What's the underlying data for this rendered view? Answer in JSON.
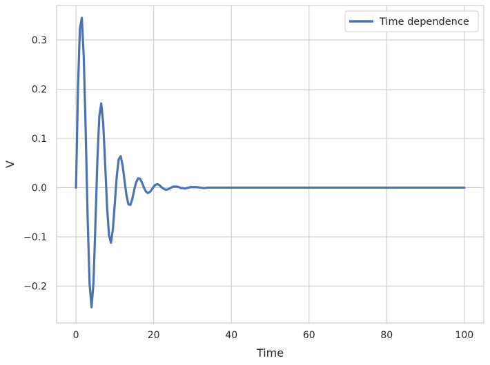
{
  "chart_data": {
    "type": "line",
    "title": "",
    "xlabel": "Time",
    "ylabel": "V",
    "xlim": [
      -5,
      105
    ],
    "ylim": [
      -0.275,
      0.37
    ],
    "xticks": [
      0,
      20,
      40,
      60,
      80,
      100
    ],
    "xtick_labels": [
      "0",
      "20",
      "40",
      "60",
      "80",
      "100"
    ],
    "yticks": [
      -0.2,
      -0.1,
      0.0,
      0.1,
      0.2,
      0.3
    ],
    "ytick_labels": [
      "−0.2",
      "−0.1",
      "0.0",
      "0.1",
      "0.2",
      "0.3"
    ],
    "grid": true,
    "legend_position": "top-right",
    "series": [
      {
        "name": "Time dependence",
        "color": "#4c72b0",
        "x": [
          0,
          0.5,
          1,
          1.5,
          2,
          2.5,
          3,
          3.5,
          4,
          4.5,
          5,
          5.5,
          6,
          6.5,
          7,
          7.5,
          8,
          8.5,
          9,
          9.5,
          10,
          10.5,
          11,
          11.5,
          12,
          12.5,
          13,
          13.5,
          14,
          14.5,
          15,
          15.5,
          16,
          16.5,
          17,
          17.5,
          18,
          18.5,
          19,
          19.5,
          20,
          20.5,
          21,
          21.5,
          22,
          22.5,
          23,
          23.5,
          24,
          24.5,
          25,
          25.5,
          26,
          26.5,
          27,
          27.5,
          28,
          28.5,
          29,
          29.5,
          30,
          31,
          32,
          33,
          34,
          35,
          36,
          37,
          38,
          39,
          40,
          41,
          42,
          43,
          44,
          45,
          46,
          47,
          48,
          49,
          50,
          52,
          54,
          56,
          58,
          60,
          62,
          64,
          66,
          68,
          70,
          75,
          80,
          85,
          90,
          95,
          100
        ],
        "y": [
          0.0,
          0.199,
          0.323,
          0.345,
          0.265,
          0.113,
          -0.063,
          -0.196,
          -0.243,
          -0.193,
          -0.073,
          0.056,
          0.145,
          0.171,
          0.131,
          0.049,
          -0.04,
          -0.097,
          -0.112,
          -0.084,
          -0.031,
          0.024,
          0.058,
          0.064,
          0.045,
          0.014,
          -0.016,
          -0.034,
          -0.035,
          -0.023,
          -0.004,
          0.011,
          0.019,
          0.018,
          0.01,
          0.0,
          -0.008,
          -0.011,
          -0.009,
          -0.004,
          0.002,
          0.006,
          0.007,
          0.005,
          0.001,
          -0.002,
          -0.004,
          -0.004,
          -0.002,
          0.0,
          0.002,
          0.002,
          0.002,
          0.001,
          -0.001,
          -0.001,
          -0.002,
          -0.001,
          0.0,
          0.001,
          0.001,
          0.001,
          0.0,
          -0.001,
          0.0,
          0.0,
          0.0,
          0.0,
          0.0,
          0.0,
          0.0,
          0.0,
          0.0,
          0.0,
          0.0,
          0.0,
          0.0,
          0.0,
          0.0,
          0.0,
          0.0,
          0.0,
          0.0,
          0.0,
          0.0,
          0.0,
          0.0,
          0.0,
          0.0,
          0.0,
          0.0,
          0.0,
          0.0,
          0.0,
          0.0,
          0.0,
          0.0
        ]
      }
    ]
  }
}
